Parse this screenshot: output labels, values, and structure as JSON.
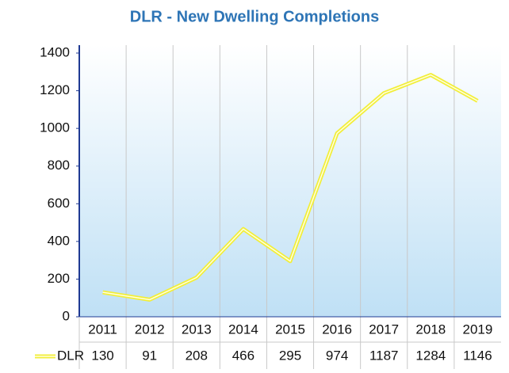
{
  "chart_data": {
    "type": "line",
    "title": "DLR - New Dwelling Completions",
    "categories": [
      "2011",
      "2012",
      "2013",
      "2014",
      "2015",
      "2016",
      "2017",
      "2018",
      "2019"
    ],
    "series": [
      {
        "name": "DLR",
        "color": "#f2ee3a",
        "values": [
          130,
          91,
          208,
          466,
          295,
          974,
          1187,
          1284,
          1146
        ]
      }
    ],
    "ylim": [
      0,
      1400
    ],
    "yticks": [
      0,
      200,
      400,
      600,
      800,
      1000,
      1200,
      1400
    ],
    "data_table": true
  }
}
